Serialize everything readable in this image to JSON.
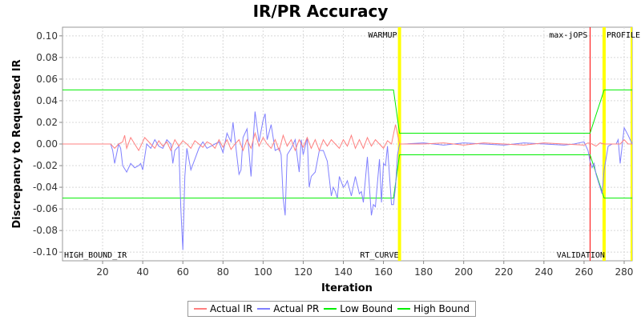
{
  "chart_data": {
    "type": "line",
    "title": "IR/PR Accuracy",
    "xlabel": "Iteration",
    "ylabel": "Discrepancy to Requested IR",
    "xlim": [
      0,
      284
    ],
    "ylim": [
      -0.108,
      0.108
    ],
    "xticks": [
      "20",
      "40",
      "60",
      "80",
      "100",
      "120",
      "140",
      "160",
      "180",
      "200",
      "220",
      "240",
      "260",
      "280"
    ],
    "xtick_values": [
      20,
      40,
      60,
      80,
      100,
      120,
      140,
      160,
      180,
      200,
      220,
      240,
      260,
      280
    ],
    "yticks": [
      "0.10",
      "0.08",
      "0.06",
      "0.04",
      "0.02",
      "0.00",
      "-0.02",
      "-0.04",
      "-0.06",
      "-0.08",
      "-0.10"
    ],
    "ytick_values": [
      0.1,
      0.08,
      0.06,
      0.04,
      0.02,
      0.0,
      -0.02,
      -0.04,
      -0.06,
      -0.08,
      -0.1
    ],
    "grid": true,
    "legend_position": "bottom",
    "phase_markers": [
      {
        "label": "WARMUP",
        "x": 168,
        "color": "#ffff00"
      },
      {
        "label": "max-jOPS",
        "x": 263,
        "color": "#ff0000"
      },
      {
        "label": "PROFILE",
        "x": 270,
        "color": "#ffff00"
      },
      {
        "label": "RT_CURVE",
        "x": 168,
        "color": "#ffff00"
      },
      {
        "label": "VALIDATION",
        "x": 263,
        "color": "#ff0000"
      },
      {
        "label": "HIGH_BOUND_IR",
        "x": 0,
        "color": "#000000"
      }
    ],
    "series": [
      {
        "name": "Actual IR",
        "color": "#ff8080",
        "x": [
          0,
          20,
          24,
          26,
          28,
          30,
          31,
          32,
          34,
          36,
          38,
          40,
          41,
          42,
          44,
          46,
          48,
          50,
          52,
          54,
          56,
          58,
          60,
          62,
          64,
          66,
          68,
          70,
          72,
          74,
          76,
          78,
          80,
          82,
          84,
          86,
          88,
          90,
          92,
          94,
          96,
          98,
          100,
          102,
          104,
          106,
          108,
          110,
          112,
          114,
          116,
          118,
          120,
          122,
          124,
          126,
          128,
          130,
          132,
          134,
          136,
          138,
          140,
          142,
          144,
          146,
          148,
          150,
          152,
          154,
          156,
          158,
          160,
          162,
          164,
          166,
          168,
          170,
          180,
          190,
          200,
          210,
          220,
          230,
          240,
          250,
          260,
          262,
          264,
          266,
          268,
          270,
          272,
          274,
          276,
          278,
          280,
          282,
          284
        ],
        "y": [
          0,
          0,
          0,
          -0.004,
          0,
          0.002,
          0.008,
          -0.004,
          0.006,
          0,
          -0.006,
          0.002,
          0.006,
          0.004,
          0,
          -0.004,
          0.003,
          -0.002,
          0.002,
          -0.006,
          0.004,
          -0.002,
          0.003,
          0,
          -0.004,
          0.003,
          0,
          -0.003,
          0.002,
          0,
          -0.004,
          0.004,
          -0.003,
          0.004,
          -0.005,
          0,
          0.004,
          -0.006,
          0.004,
          -0.004,
          0.01,
          -0.002,
          0.006,
          0,
          -0.004,
          0.004,
          -0.006,
          0.008,
          -0.002,
          0.004,
          -0.006,
          0.004,
          -0.003,
          0.006,
          -0.004,
          0.004,
          -0.006,
          0.004,
          -0.002,
          0.004,
          0,
          -0.004,
          0.004,
          -0.002,
          0.008,
          -0.004,
          0.004,
          -0.004,
          0.006,
          -0.002,
          0.004,
          0,
          -0.004,
          0.003,
          0,
          0.018,
          0,
          0,
          0,
          0.001,
          -0.001,
          0.001,
          0,
          -0.001,
          0.001,
          0,
          -0.001,
          0.001,
          0,
          -0.002,
          0.001,
          0,
          0,
          0,
          0,
          0,
          0.004,
          0,
          0
        ]
      },
      {
        "name": "Actual PR",
        "color": "#8080ff",
        "x": [
          0,
          20,
          24,
          25,
          26,
          28,
          29,
          30,
          32,
          34,
          36,
          38,
          39,
          40,
          42,
          44,
          46,
          48,
          50,
          52,
          54,
          55,
          56,
          58,
          59,
          60,
          61,
          62,
          64,
          66,
          68,
          70,
          72,
          74,
          76,
          78,
          80,
          82,
          84,
          85,
          86,
          88,
          89,
          90,
          92,
          94,
          95,
          96,
          98,
          100,
          101,
          102,
          104,
          106,
          108,
          109,
          110,
          111,
          112,
          114,
          116,
          118,
          119,
          120,
          122,
          123,
          124,
          126,
          128,
          130,
          132,
          134,
          135,
          136,
          137,
          138,
          140,
          141,
          142,
          144,
          146,
          148,
          149,
          150,
          152,
          154,
          155,
          156,
          158,
          159,
          160,
          161,
          162,
          164,
          165,
          166,
          167,
          168,
          170,
          180,
          190,
          200,
          210,
          220,
          230,
          240,
          250,
          255,
          260,
          262,
          263,
          264,
          265,
          266,
          267,
          268,
          269,
          270,
          272,
          274,
          276,
          277,
          278,
          280,
          282,
          284
        ],
        "y": [
          0,
          0,
          0,
          -0.006,
          -0.018,
          0,
          -0.004,
          -0.02,
          -0.026,
          -0.018,
          -0.022,
          -0.02,
          -0.018,
          -0.024,
          0,
          -0.004,
          0.004,
          -0.002,
          -0.004,
          0.004,
          0,
          -0.018,
          -0.006,
          -0.002,
          -0.06,
          -0.098,
          -0.03,
          -0.004,
          -0.024,
          -0.014,
          -0.004,
          0.002,
          -0.004,
          -0.002,
          0,
          0.002,
          -0.008,
          0.01,
          0.002,
          0.02,
          0.004,
          -0.028,
          -0.024,
          0.006,
          0.014,
          -0.03,
          0.002,
          0.03,
          0.002,
          0.022,
          0.028,
          0.004,
          0.018,
          -0.006,
          -0.004,
          -0.01,
          -0.05,
          -0.066,
          -0.01,
          -0.004,
          0.004,
          -0.026,
          0.004,
          -0.01,
          0.006,
          -0.04,
          -0.03,
          -0.026,
          -0.006,
          -0.006,
          -0.016,
          -0.048,
          -0.04,
          -0.044,
          -0.05,
          -0.03,
          -0.04,
          -0.038,
          -0.034,
          -0.048,
          -0.03,
          -0.046,
          -0.044,
          -0.054,
          -0.012,
          -0.066,
          -0.056,
          -0.058,
          -0.014,
          -0.054,
          -0.018,
          -0.02,
          -0.002,
          -0.056,
          -0.056,
          -0.04,
          -0.01,
          0,
          0,
          0.001,
          -0.001,
          0.001,
          0,
          -0.001,
          0.001,
          0,
          -0.001,
          0,
          0.002,
          -0.006,
          -0.016,
          -0.022,
          -0.018,
          -0.028,
          -0.034,
          -0.04,
          -0.046,
          -0.024,
          -0.002,
          0,
          0,
          0.004,
          -0.018,
          0.015,
          0.008,
          0
        ]
      },
      {
        "name": "Low Bound",
        "color": "#00ee00",
        "x": [
          0,
          165,
          168,
          262,
          263,
          270,
          284
        ],
        "y": [
          -0.05,
          -0.05,
          -0.01,
          -0.01,
          -0.01,
          -0.05,
          -0.05
        ]
      },
      {
        "name": "High Bound",
        "color": "#00ee00",
        "x": [
          0,
          165,
          168,
          262,
          263,
          270,
          284
        ],
        "y": [
          0.05,
          0.05,
          0.01,
          0.01,
          0.01,
          0.05,
          0.05
        ]
      }
    ]
  }
}
